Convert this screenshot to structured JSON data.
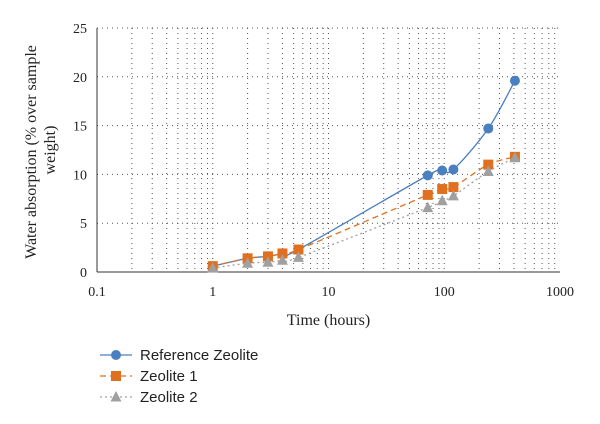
{
  "chart_data": {
    "type": "line",
    "x_scale": "log",
    "xlabel": "Time (hours)",
    "ylabel": [
      "Water absorption (% over sample",
      "weight)"
    ],
    "xlim": [
      0.1,
      1000
    ],
    "ylim": [
      0,
      25
    ],
    "x_ticks": [
      0.1,
      1,
      10,
      100,
      1000
    ],
    "x_tick_labels": [
      "0.1",
      "1",
      "10",
      "100",
      "1000"
    ],
    "y_ticks": [
      0,
      5,
      10,
      15,
      20,
      25
    ],
    "y_tick_labels": [
      "0",
      "5",
      "10",
      "15",
      "20",
      "25"
    ],
    "grid": true,
    "legend_position": "bottom-left",
    "series": [
      {
        "name": "Reference Zeolite",
        "color": "#4a7fc1",
        "marker": "circle",
        "line": "solid",
        "x": [
          1,
          2,
          3,
          4,
          5.5,
          72,
          96,
          120,
          240,
          408
        ],
        "y": [
          0.6,
          1.4,
          1.6,
          1.9,
          2.3,
          9.9,
          10.4,
          10.5,
          14.7,
          19.6
        ]
      },
      {
        "name": "Zeolite 1",
        "color": "#e07020",
        "marker": "square",
        "line": "dashed",
        "x": [
          1,
          2,
          3,
          4,
          5.5,
          72,
          96,
          120,
          240,
          408
        ],
        "y": [
          0.6,
          1.4,
          1.6,
          1.9,
          2.3,
          7.9,
          8.5,
          8.7,
          11.0,
          11.8
        ]
      },
      {
        "name": "Zeolite 2",
        "color": "#a0a0a0",
        "marker": "triangle",
        "line": "dotted",
        "x": [
          1,
          2,
          3,
          4,
          5.5,
          72,
          96,
          120,
          240,
          408
        ],
        "y": [
          0.4,
          0.9,
          1.0,
          1.2,
          1.5,
          6.6,
          7.3,
          7.8,
          10.3,
          11.7
        ]
      }
    ]
  }
}
